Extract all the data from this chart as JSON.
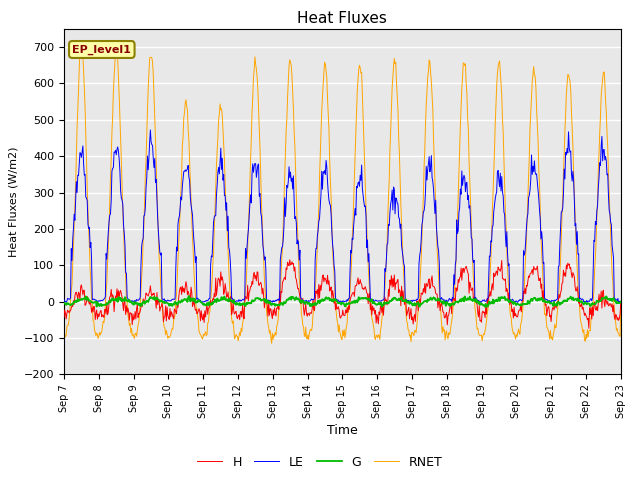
{
  "title": "Heat Fluxes",
  "xlabel": "Time",
  "ylabel": "Heat Fluxes (W/m2)",
  "ylim": [
    -200,
    750
  ],
  "yticks": [
    -200,
    -100,
    0,
    100,
    200,
    300,
    400,
    500,
    600,
    700
  ],
  "annotation": "EP_level1",
  "legend_labels": [
    "H",
    "LE",
    "G",
    "RNET"
  ],
  "colors": {
    "H": "#ff0000",
    "LE": "#0000ff",
    "G": "#00bb00",
    "RNET": "#ffa500"
  },
  "start_day": 7,
  "end_day": 22,
  "num_days": 16,
  "bg_color": "#e8e8e8",
  "grid_color": "#ffffff",
  "fig_bg": "#ffffff"
}
